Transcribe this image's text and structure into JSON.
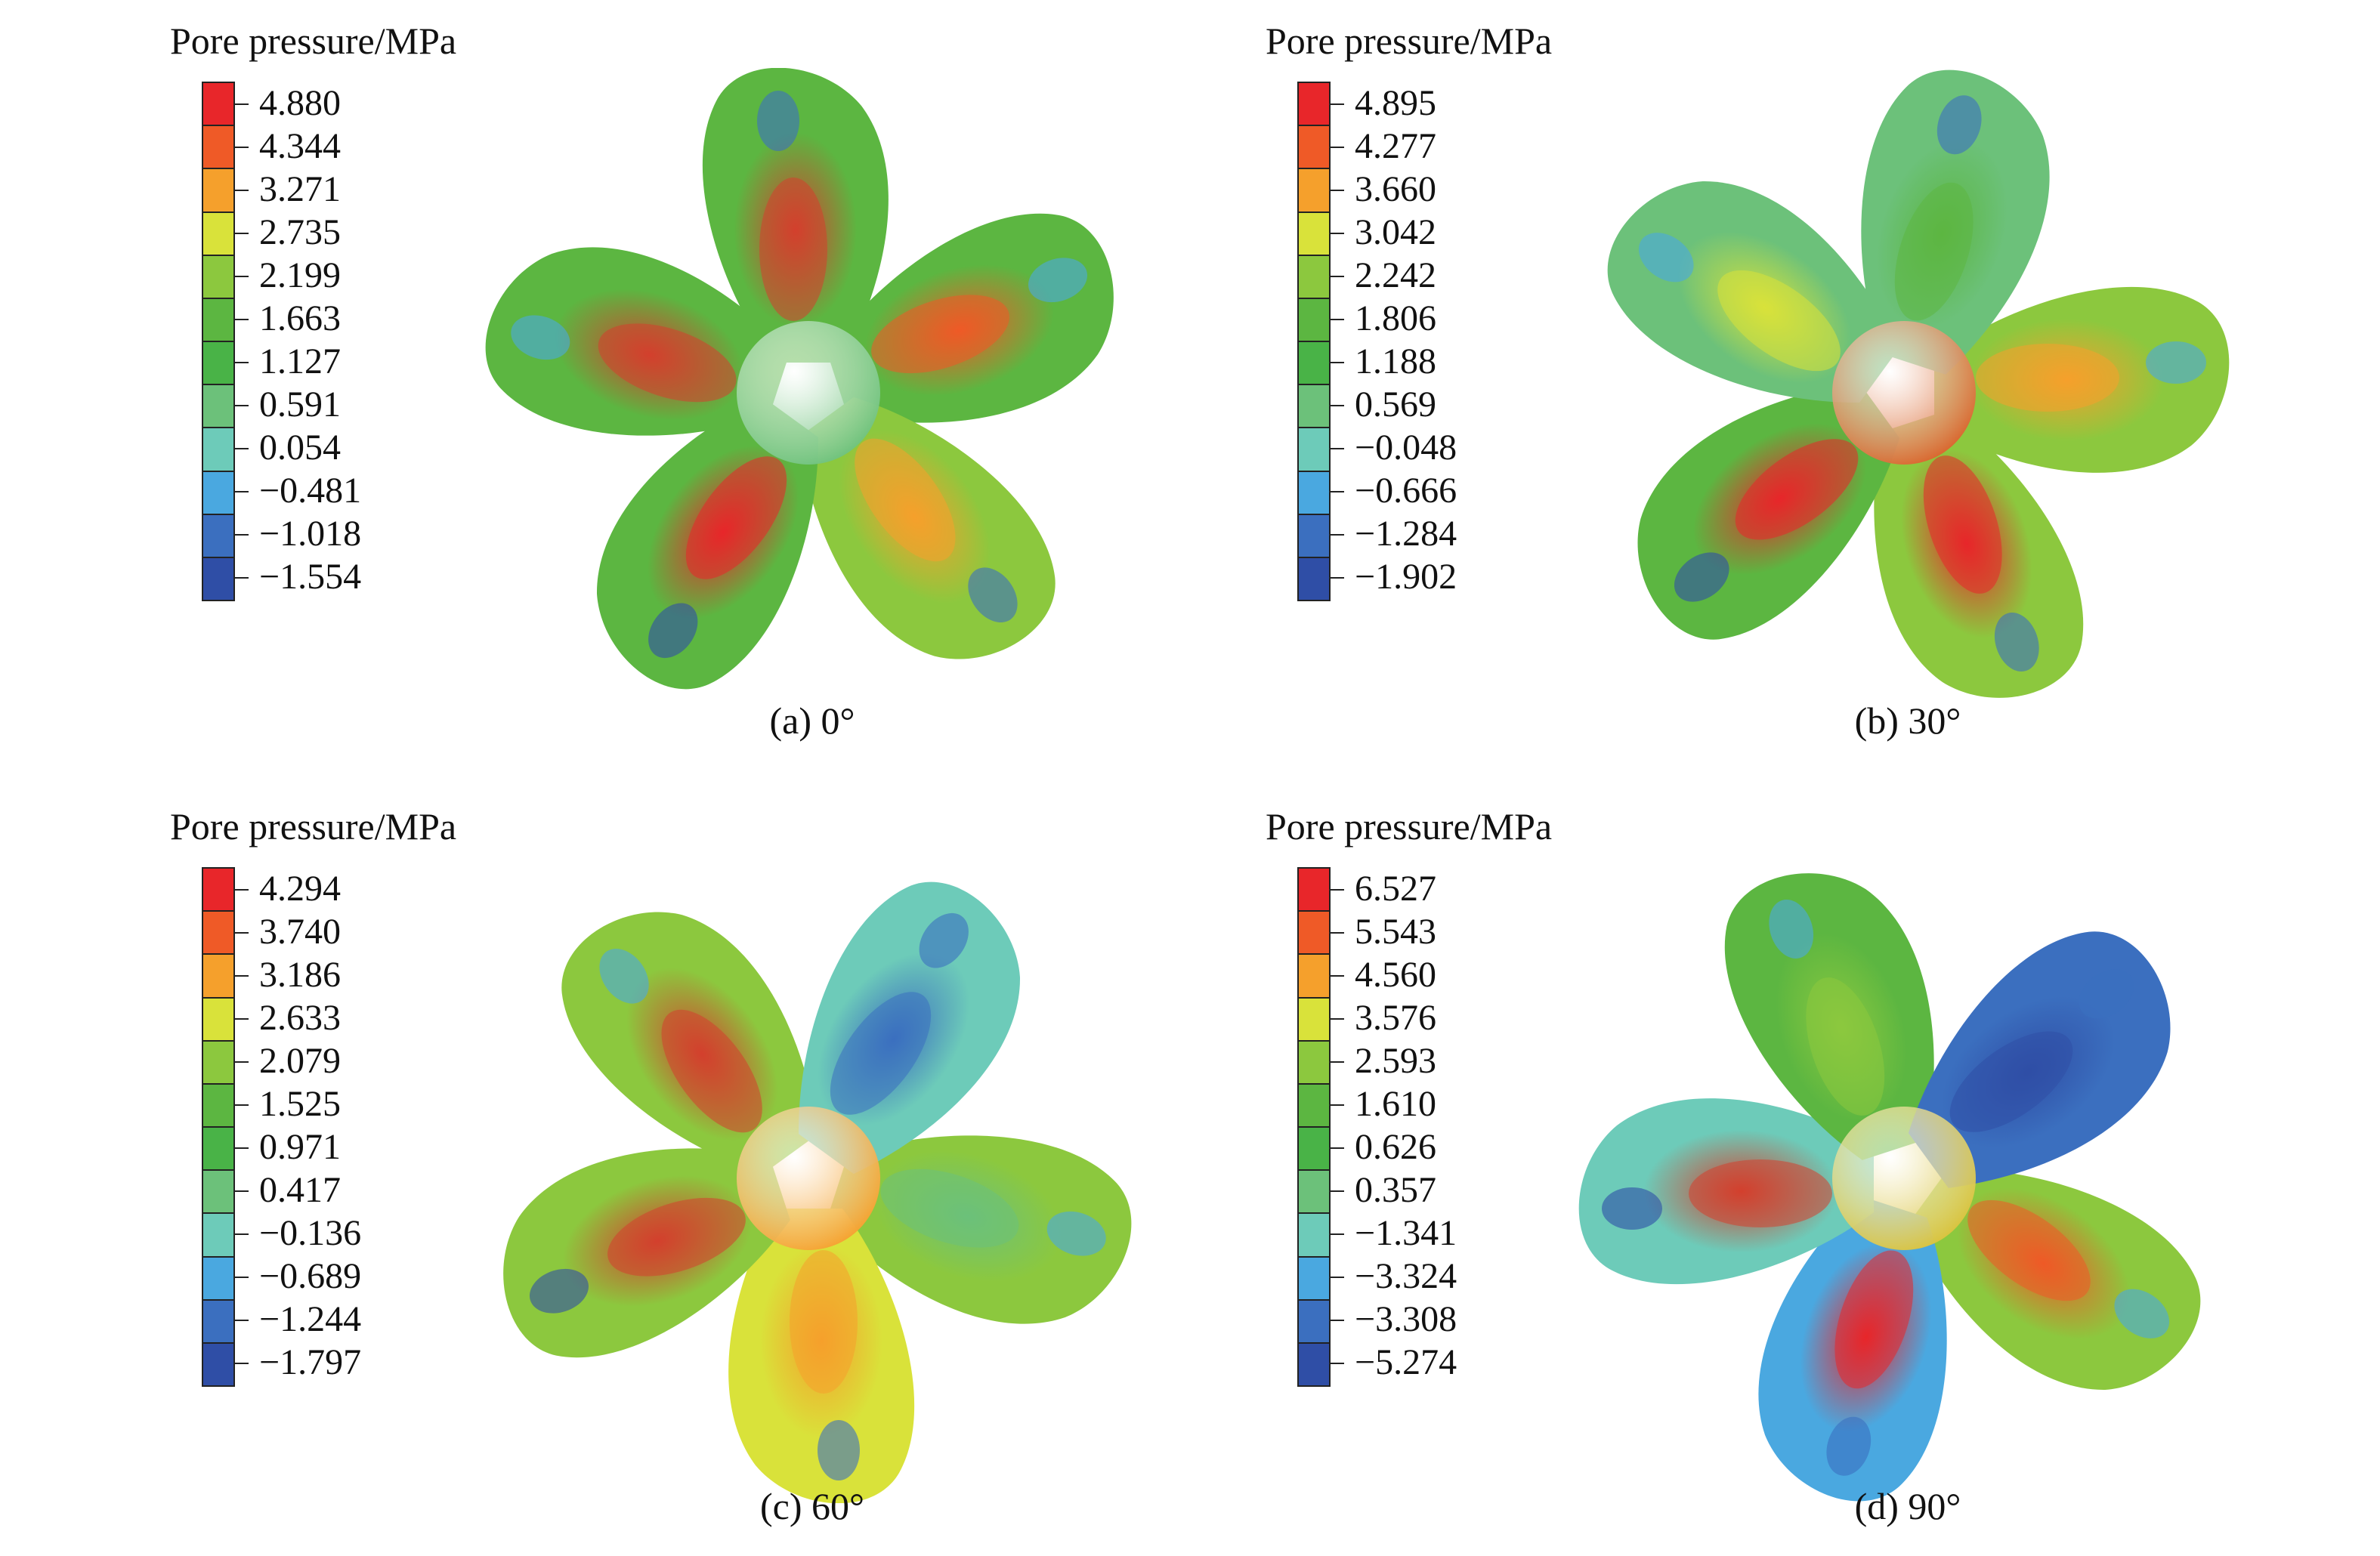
{
  "colors": [
    "#e8262a",
    "#ef5a27",
    "#f5a02c",
    "#d9e23a",
    "#8cc83e",
    "#5cb641",
    "#49b347",
    "#6cc17a",
    "#6dcbb9",
    "#4aa8e0",
    "#3b6fbf",
    "#2f4ea6"
  ],
  "panels": [
    {
      "legend_title": "Pore pressure/MPa",
      "caption": "(a) 0°",
      "ticks": [
        "4.880",
        "4.344",
        "3.271",
        "2.735",
        "2.199",
        "1.663",
        "1.127",
        "0.591",
        "0.054",
        "−0.481",
        "−1.018",
        "−1.554"
      ],
      "blade_icon": "propeller-blade-icon",
      "hub_color": "#6cc17a",
      "blade_colors": [
        "#5cb641",
        "#8cc83e",
        "#5cb641",
        "#5cb641",
        "#5cb641"
      ],
      "hot_colors": [
        "#ef5a27",
        "#f5a02c",
        "#e8262a",
        "#d3402d",
        "#d3402d"
      ]
    },
    {
      "legend_title": "Pore pressure/MPa",
      "caption": "(b) 30°",
      "ticks": [
        "4.895",
        "4.277",
        "3.660",
        "3.042",
        "2.242",
        "1.806",
        "1.188",
        "0.569",
        "−0.048",
        "−0.666",
        "−1.284",
        "−1.902"
      ],
      "blade_icon": "propeller-blade-icon",
      "hub_color": "#d9632a",
      "blade_colors": [
        "#8cc83e",
        "#8cc83e",
        "#5cb641",
        "#6cc17a",
        "#6cc17a"
      ],
      "hot_colors": [
        "#f5a02c",
        "#e8262a",
        "#e8262a",
        "#d9e23a",
        "#5cb641"
      ]
    },
    {
      "legend_title": "Pore pressure/MPa",
      "caption": "(c) 60°",
      "ticks": [
        "4.294",
        "3.740",
        "3.186",
        "2.633",
        "2.079",
        "1.525",
        "0.971",
        "0.417",
        "−0.136",
        "−0.689",
        "−1.244",
        "−1.797"
      ],
      "blade_icon": "propeller-blade-icon",
      "hub_color": "#f5a02c",
      "blade_colors": [
        "#8cc83e",
        "#d9e23a",
        "#8cc83e",
        "#8cc83e",
        "#6dcbb9"
      ],
      "hot_colors": [
        "#6cc17a",
        "#f5a02c",
        "#d3402d",
        "#d3402d",
        "#3b6fbf"
      ]
    },
    {
      "legend_title": "Pore pressure/MPa",
      "caption": "(d) 90°",
      "ticks": [
        "6.527",
        "5.543",
        "4.560",
        "3.576",
        "2.593",
        "1.610",
        "0.626",
        "0.357",
        "−1.341",
        "−3.324",
        "−3.308",
        "−5.274"
      ],
      "blade_icon": "propeller-blade-icon",
      "hub_color": "#d9c23a",
      "blade_colors": [
        "#8cc83e",
        "#4aa8e0",
        "#6dcbb9",
        "#5cb641",
        "#3b6fbf"
      ],
      "hot_colors": [
        "#ef5a27",
        "#e8262a",
        "#d3402d",
        "#8cc83e",
        "#2f4ea6"
      ]
    }
  ]
}
